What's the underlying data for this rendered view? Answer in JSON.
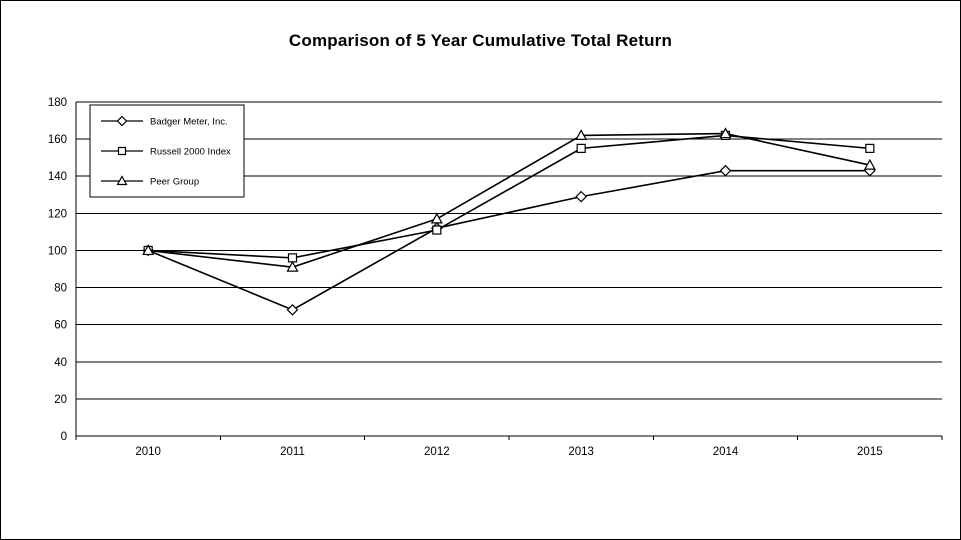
{
  "chart_data": {
    "type": "line",
    "title": "Comparison of 5 Year Cumulative Total Return",
    "categories": [
      "2010",
      "2011",
      "2012",
      "2013",
      "2014",
      "2015"
    ],
    "series": [
      {
        "name": "Badger Meter, Inc.",
        "marker": "diamond",
        "values": [
          100,
          68,
          112,
          129,
          143,
          143
        ]
      },
      {
        "name": "Russell 2000 Index",
        "marker": "square",
        "values": [
          100,
          96,
          111,
          155,
          162,
          155
        ]
      },
      {
        "name": "Peer Group",
        "marker": "triangle",
        "values": [
          100,
          91,
          117,
          162,
          163,
          146
        ]
      }
    ],
    "ylim": [
      0,
      180
    ],
    "yticks": [
      0,
      20,
      40,
      60,
      80,
      100,
      120,
      140,
      160,
      180
    ],
    "grid": true,
    "legend_position": "top-left-inside",
    "line_color": "#000000",
    "marker_fill": "#ffffff",
    "axis_color": "#000000"
  }
}
